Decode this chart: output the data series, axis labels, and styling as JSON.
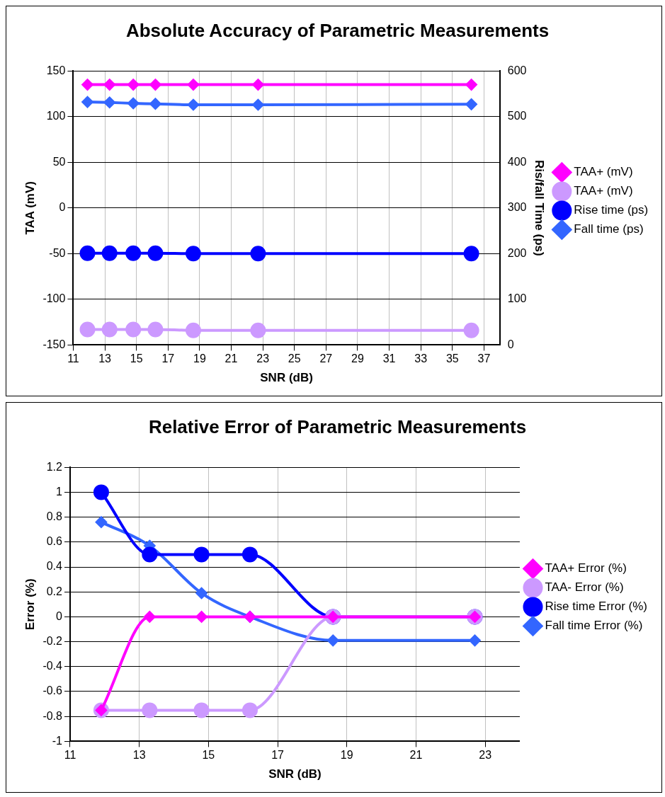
{
  "chart_data": [
    {
      "type": "line",
      "title": "Absolute Accuracy of Parametric Measurements",
      "xlabel": "SNR (dB)",
      "ylabel": "TAA (mV)",
      "y2label": "Ris/fall Time (ps)",
      "x": [
        11.9,
        13.3,
        14.8,
        16.2,
        18.6,
        22.7,
        36.2
      ],
      "series": [
        {
          "name": "TAA+ (mV)",
          "color": "#ff00ff",
          "marker": "diamond",
          "values": [
            135,
            135,
            135,
            135,
            135,
            135,
            135
          ]
        },
        {
          "name": "TAA+ (mV)",
          "color": "#cc99ff",
          "marker": "circle",
          "values": [
            -133,
            -133,
            -133,
            -133,
            -134,
            -134,
            -134
          ]
        },
        {
          "name": "Rise time (ps)",
          "color": "#0000ff",
          "marker": "circle",
          "axis": "y2",
          "values": [
            201,
            201,
            201,
            201,
            200,
            200,
            200
          ]
        },
        {
          "name": "Fall time (ps)",
          "color": "#3366ff",
          "marker": "diamond",
          "axis": "y2",
          "values": [
            532,
            531,
            529,
            528,
            526,
            526,
            527
          ]
        }
      ],
      "xlim": [
        11,
        38
      ],
      "xticks": [
        11,
        13,
        15,
        17,
        19,
        21,
        23,
        25,
        27,
        29,
        31,
        33,
        35,
        37
      ],
      "ylim": [
        -150,
        150
      ],
      "yticks": [
        -150,
        -100,
        -50,
        0,
        50,
        100,
        150
      ],
      "y2lim": [
        0,
        600
      ],
      "y2ticks": [
        0,
        100,
        200,
        300,
        400,
        500,
        600
      ],
      "grid": true,
      "legend": "right"
    },
    {
      "type": "line",
      "title": "Relative Error of Parametric Measurements",
      "xlabel": "SNR (dB)",
      "ylabel": "Error (%)",
      "x": [
        11.9,
        13.3,
        14.8,
        16.2,
        18.6,
        22.7
      ],
      "series": [
        {
          "name": "TAA+ Error (%)",
          "color": "#ff00ff",
          "marker": "diamond",
          "values": [
            -0.75,
            0,
            0,
            0,
            0,
            0
          ]
        },
        {
          "name": "TAA- Error (%)",
          "color": "#cc99ff",
          "marker": "circle",
          "values": [
            -0.75,
            -0.75,
            -0.75,
            -0.75,
            0,
            0
          ]
        },
        {
          "name": "Rise time Error (%)",
          "color": "#0000ff",
          "marker": "circle",
          "values": [
            1,
            0.5,
            0.5,
            0.5,
            0,
            0
          ]
        },
        {
          "name": "Fall time Error (%)",
          "color": "#3366ff",
          "marker": "diamond",
          "values": [
            0.76,
            0.57,
            0.19,
            0,
            -0.19,
            -0.19
          ]
        }
      ],
      "xlim": [
        11,
        24
      ],
      "xticks": [
        11,
        13,
        15,
        17,
        19,
        21,
        23
      ],
      "ylim": [
        -1,
        1.2
      ],
      "yticks": [
        -1,
        -0.8,
        -0.6,
        -0.4,
        -0.2,
        0,
        0.2,
        0.4,
        0.6,
        0.8,
        1,
        1.2
      ],
      "grid": true,
      "legend": "right"
    }
  ]
}
